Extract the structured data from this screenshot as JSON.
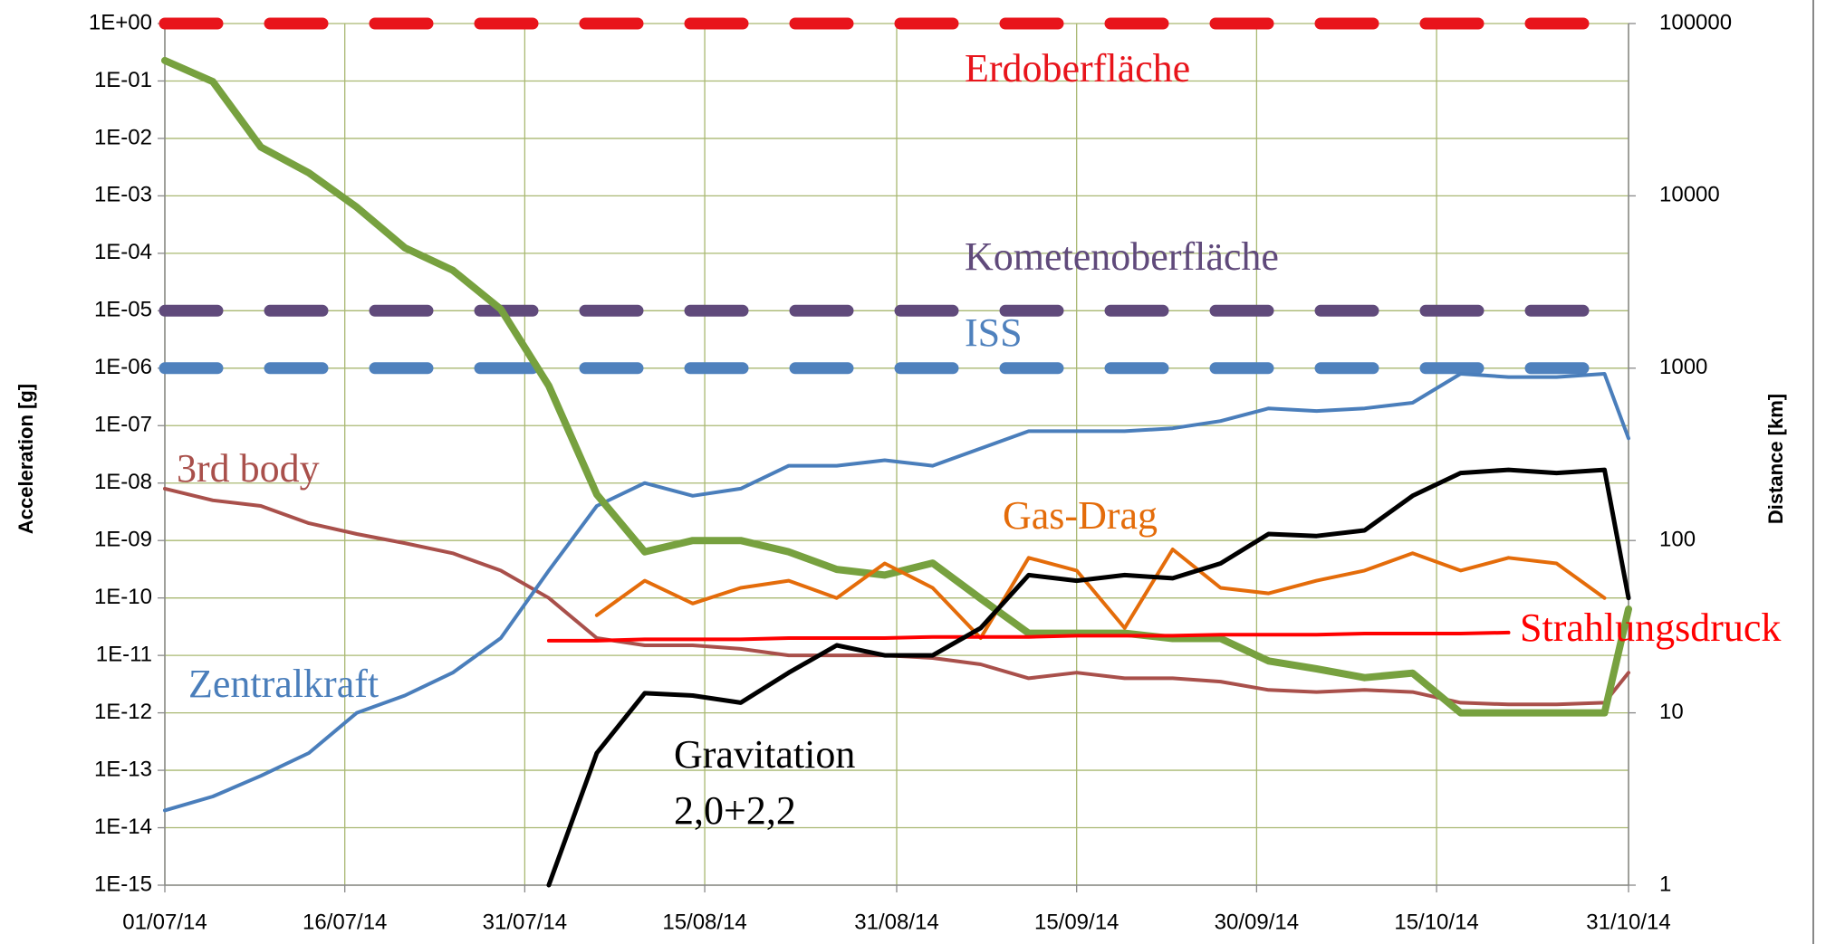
{
  "chart_data": {
    "type": "line",
    "y_label": "Acceleration [g]",
    "y2_label": "Distance [km]",
    "x": [
      "2014-07-01",
      "2014-07-05",
      "2014-07-09",
      "2014-07-13",
      "2014-07-17",
      "2014-07-21",
      "2014-07-25",
      "2014-07-29",
      "2014-08-02",
      "2014-08-06",
      "2014-08-10",
      "2014-08-14",
      "2014-08-18",
      "2014-08-22",
      "2014-08-26",
      "2014-08-30",
      "2014-09-03",
      "2014-09-07",
      "2014-09-11",
      "2014-09-15",
      "2014-09-19",
      "2014-09-23",
      "2014-09-27",
      "2014-10-01",
      "2014-10-05",
      "2014-10-09",
      "2014-10-13",
      "2014-10-17",
      "2014-10-21",
      "2014-10-25",
      "2014-10-29",
      "2014-10-31"
    ],
    "xlim": [
      "2014-07-01",
      "2014-10-31"
    ],
    "xticks": [
      {
        "value": "2014-07-01",
        "label": "01/07/14"
      },
      {
        "value": "2014-07-16",
        "label": "16/07/14"
      },
      {
        "value": "2014-07-31",
        "label": "31/07/14"
      },
      {
        "value": "2014-08-15",
        "label": "15/08/14"
      },
      {
        "value": "2014-08-31",
        "label": "31/08/14"
      },
      {
        "value": "2014-09-15",
        "label": "15/09/14"
      },
      {
        "value": "2014-09-30",
        "label": "30/09/14"
      },
      {
        "value": "2014-10-15",
        "label": "15/10/14"
      },
      {
        "value": "2014-10-31",
        "label": "31/10/14"
      }
    ],
    "yscale": "log",
    "ylim": [
      1e-15,
      1
    ],
    "yticks": [
      {
        "value": 1e-15,
        "label": "1E-15"
      },
      {
        "value": 1e-14,
        "label": "1E-14"
      },
      {
        "value": 1e-13,
        "label": "1E-13"
      },
      {
        "value": 1e-12,
        "label": "1E-12"
      },
      {
        "value": 1e-11,
        "label": "1E-11"
      },
      {
        "value": 1e-10,
        "label": "1E-10"
      },
      {
        "value": 1e-09,
        "label": "1E-09"
      },
      {
        "value": 1e-08,
        "label": "1E-08"
      },
      {
        "value": 1e-07,
        "label": "1E-07"
      },
      {
        "value": 1e-06,
        "label": "1E-06"
      },
      {
        "value": 1e-05,
        "label": "1E-05"
      },
      {
        "value": 0.0001,
        "label": "1E-04"
      },
      {
        "value": 0.001,
        "label": "1E-03"
      },
      {
        "value": 0.01,
        "label": "1E-02"
      },
      {
        "value": 0.1,
        "label": "1E-01"
      },
      {
        "value": 1,
        "label": "1E+00"
      }
    ],
    "y2scale": "log",
    "y2lim": [
      1,
      100000
    ],
    "y2ticks": [
      1,
      10,
      100,
      1000,
      10000,
      100000
    ],
    "grid": true,
    "series": [
      {
        "name": "Erdoberfläche",
        "color": "#e8141b",
        "style": "dashed",
        "values": [
          1,
          1,
          1,
          1,
          1,
          1,
          1,
          1,
          1,
          1,
          1,
          1,
          1,
          1,
          1,
          1,
          1,
          1,
          1,
          1,
          1,
          1,
          1,
          1,
          1,
          1,
          1,
          1,
          1,
          1,
          1,
          1
        ]
      },
      {
        "name": "Kometenoberfläche",
        "color": "#604a7b",
        "style": "dashed",
        "values": [
          1e-05,
          1e-05,
          1e-05,
          1e-05,
          1e-05,
          1e-05,
          1e-05,
          1e-05,
          1e-05,
          1e-05,
          1e-05,
          1e-05,
          1e-05,
          1e-05,
          1e-05,
          1e-05,
          1e-05,
          1e-05,
          1e-05,
          1e-05,
          1e-05,
          1e-05,
          1e-05,
          1e-05,
          1e-05,
          1e-05,
          1e-05,
          1e-05,
          1e-05,
          1e-05,
          1e-05,
          1e-05
        ]
      },
      {
        "name": "ISS",
        "color": "#4f81bd",
        "style": "dashed",
        "values": [
          1e-06,
          1e-06,
          1e-06,
          1e-06,
          1e-06,
          1e-06,
          1e-06,
          1e-06,
          1e-06,
          1e-06,
          1e-06,
          1e-06,
          1e-06,
          1e-06,
          1e-06,
          1e-06,
          1e-06,
          1e-06,
          1e-06,
          1e-06,
          1e-06,
          1e-06,
          1e-06,
          1e-06,
          1e-06,
          1e-06,
          1e-06,
          1e-06,
          1e-06,
          1e-06,
          1e-06,
          1e-06
        ]
      },
      {
        "name": "3rd body",
        "color": "#a9504b",
        "values": [
          8e-09,
          5e-09,
          4e-09,
          2e-09,
          1.3e-09,
          9e-10,
          6e-10,
          3e-10,
          1e-10,
          2e-11,
          1.5e-11,
          1.5e-11,
          1.3e-11,
          1e-11,
          1e-11,
          1e-11,
          9e-12,
          7e-12,
          4e-12,
          5e-12,
          4e-12,
          4e-12,
          3.5e-12,
          2.5e-12,
          2.3e-12,
          2.5e-12,
          2.3e-12,
          1.5e-12,
          1.4e-12,
          1.4e-12,
          1.5e-12,
          5e-12
        ]
      },
      {
        "name": "Zentralkraft",
        "color": "#4a7ebb",
        "values": [
          2e-14,
          3.5e-14,
          8e-14,
          2e-13,
          1e-12,
          2e-12,
          5e-12,
          2e-11,
          3e-10,
          4e-09,
          1e-08,
          6e-09,
          8e-09,
          2e-08,
          2e-08,
          2.5e-08,
          2e-08,
          4e-08,
          8e-08,
          8e-08,
          8e-08,
          9e-08,
          1.2e-07,
          2e-07,
          1.8e-07,
          2e-07,
          2.5e-07,
          8e-07,
          7e-07,
          7e-07,
          8e-07,
          6e-08
        ]
      },
      {
        "axis": "y2",
        "color": "#77a13f",
        "values": [
          61000,
          46000,
          19200,
          13600,
          8600,
          5000,
          3700,
          2200,
          790,
          185,
          86,
          100,
          100,
          86,
          68,
          63,
          74,
          46,
          29,
          29,
          29,
          27,
          27,
          20,
          18,
          16,
          17,
          10,
          10,
          10,
          10,
          40
        ]
      },
      {
        "name": "Gas-Drag",
        "color": "#e46c0a",
        "values": [
          null,
          null,
          null,
          null,
          null,
          null,
          null,
          null,
          null,
          5e-11,
          2e-10,
          8e-11,
          1.5e-10,
          2e-10,
          1e-10,
          4e-10,
          1.5e-10,
          2e-11,
          5e-10,
          3e-10,
          3e-11,
          7e-10,
          1.5e-10,
          1.2e-10,
          2e-10,
          3e-10,
          6e-10,
          3e-10,
          5e-10,
          4e-10,
          1e-10,
          null
        ]
      },
      {
        "name": "Strahlungsdruck",
        "color": "#ff0000",
        "values": [
          null,
          null,
          null,
          null,
          null,
          null,
          null,
          null,
          1.8e-11,
          1.8e-11,
          1.9e-11,
          1.9e-11,
          1.9e-11,
          2e-11,
          2e-11,
          2e-11,
          2.1e-11,
          2.1e-11,
          2.1e-11,
          2.2e-11,
          2.2e-11,
          2.2e-11,
          2.3e-11,
          2.3e-11,
          2.3e-11,
          2.4e-11,
          2.4e-11,
          2.4e-11,
          2.5e-11,
          null,
          null,
          null
        ]
      },
      {
        "name": "Gravitation 2,0+2,2",
        "color": "#000000",
        "values": [
          null,
          null,
          null,
          null,
          null,
          null,
          null,
          null,
          1e-15,
          2e-13,
          2.2e-12,
          2e-12,
          1.5e-12,
          5e-12,
          1.5e-11,
          1e-11,
          1e-11,
          3e-11,
          2.5e-10,
          2e-10,
          2.5e-10,
          2.2e-10,
          4e-10,
          1.3e-09,
          1.2e-09,
          1.5e-09,
          6e-09,
          1.5e-08,
          1.7e-08,
          1.5e-08,
          1.7e-08,
          1e-10
        ]
      }
    ]
  }
}
